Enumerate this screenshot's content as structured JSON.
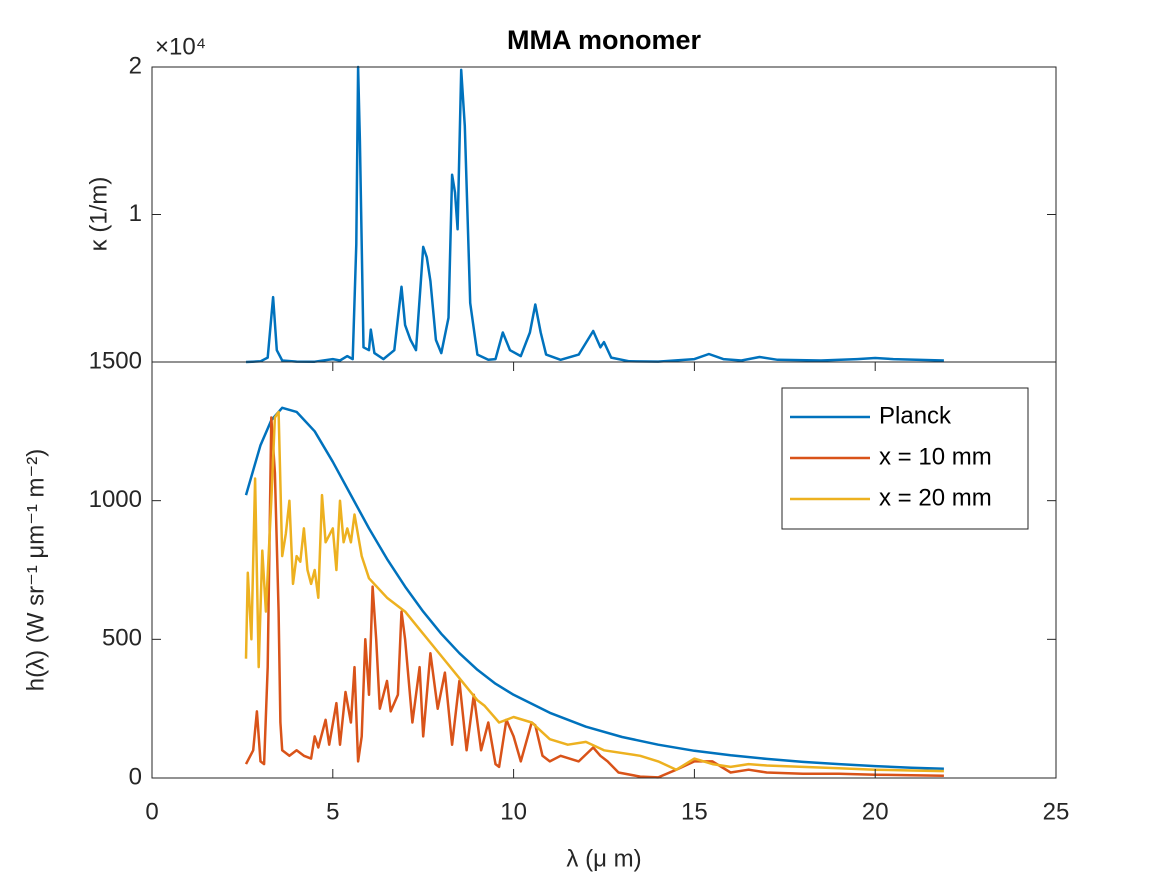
{
  "chart_data": [
    {
      "type": "line",
      "title": "MMA monomer",
      "ylabel": "κ (1/m)",
      "exponent_label": "×10⁴",
      "xlim": [
        0,
        25
      ],
      "ylim": [
        0,
        20000
      ],
      "yticks": [
        {
          "value": 10000,
          "label": "1"
        },
        {
          "value": 20000,
          "label": "2"
        }
      ],
      "series": [
        {
          "color": "#0072BD",
          "x": [
            2.6,
            3.0,
            3.2,
            3.35,
            3.45,
            3.6,
            4.0,
            4.5,
            5.0,
            5.2,
            5.4,
            5.55,
            5.65,
            5.7,
            5.75,
            5.85,
            6.0,
            6.05,
            6.15,
            6.4,
            6.7,
            6.9,
            7.0,
            7.15,
            7.3,
            7.45,
            7.5,
            7.6,
            7.7,
            7.85,
            8.0,
            8.2,
            8.3,
            8.38,
            8.45,
            8.55,
            8.65,
            8.8,
            9.0,
            9.3,
            9.5,
            9.7,
            9.9,
            10.2,
            10.45,
            10.6,
            10.75,
            10.9,
            11.3,
            11.8,
            12.2,
            12.4,
            12.5,
            12.7,
            13.2,
            14.0,
            15.0,
            15.4,
            15.8,
            16.3,
            16.8,
            17.3,
            18.5,
            19.5,
            20.0,
            20.5,
            21.9
          ],
          "values": [
            0,
            50,
            300,
            4400,
            800,
            100,
            30,
            20,
            200,
            100,
            400,
            200,
            8000,
            20000,
            15000,
            1000,
            800,
            2200,
            600,
            200,
            800,
            5100,
            2500,
            1500,
            800,
            6000,
            7800,
            7100,
            5500,
            1500,
            600,
            3000,
            12700,
            11500,
            9000,
            19800,
            16000,
            4000,
            500,
            150,
            200,
            2000,
            800,
            400,
            2000,
            3900,
            2000,
            500,
            150,
            500,
            2100,
            1000,
            1350,
            300,
            50,
            30,
            200,
            540,
            200,
            100,
            340,
            150,
            100,
            200,
            270,
            200,
            100
          ]
        }
      ]
    },
    {
      "type": "line",
      "xlabel": "λ (μ m)",
      "ylabel": "h(λ) (W sr⁻¹ μm⁻¹ m⁻²)",
      "xlim": [
        0,
        25
      ],
      "ylim": [
        0,
        1500
      ],
      "xticks": [
        0,
        5,
        10,
        15,
        20,
        25
      ],
      "yticks": [
        0,
        500,
        1000,
        1500
      ],
      "legend": "northeast",
      "series": [
        {
          "name": "Planck",
          "color": "#0072BD",
          "x": [
            2.6,
            3.0,
            3.3,
            3.6,
            4.0,
            4.5,
            5.0,
            5.5,
            6.0,
            6.5,
            7.0,
            7.5,
            8.0,
            8.5,
            9.0,
            9.5,
            10.0,
            11.0,
            12.0,
            13.0,
            14.0,
            15.0,
            16.0,
            17.0,
            18.0,
            19.0,
            20.0,
            21.0,
            21.9
          ],
          "values": [
            1020,
            1200,
            1290,
            1335,
            1320,
            1250,
            1140,
            1020,
            900,
            790,
            690,
            600,
            520,
            450,
            390,
            340,
            300,
            235,
            185,
            148,
            120,
            98,
            82,
            69,
            58,
            50,
            43,
            37,
            33
          ]
        },
        {
          "name": "x = 10 mm",
          "color": "#D95319",
          "x": [
            2.6,
            2.8,
            2.9,
            3.0,
            3.1,
            3.2,
            3.3,
            3.4,
            3.5,
            3.55,
            3.6,
            3.8,
            4.0,
            4.2,
            4.4,
            4.5,
            4.6,
            4.8,
            4.9,
            5.1,
            5.2,
            5.35,
            5.5,
            5.6,
            5.7,
            5.8,
            5.9,
            6.0,
            6.1,
            6.2,
            6.3,
            6.5,
            6.6,
            6.8,
            6.9,
            7.0,
            7.2,
            7.4,
            7.5,
            7.7,
            7.9,
            8.1,
            8.3,
            8.5,
            8.7,
            8.9,
            9.1,
            9.3,
            9.5,
            9.6,
            9.8,
            10.0,
            10.2,
            10.5,
            10.6,
            10.8,
            11.0,
            11.3,
            11.8,
            12.2,
            12.4,
            12.6,
            12.9,
            13.5,
            14.0,
            14.5,
            15.0,
            15.5,
            16.0,
            16.5,
            17.0,
            18.0,
            19.0,
            20.0,
            21.0,
            21.9
          ],
          "values": [
            50,
            100,
            240,
            60,
            50,
            400,
            1300,
            1100,
            600,
            200,
            100,
            80,
            100,
            80,
            70,
            150,
            110,
            210,
            120,
            270,
            120,
            310,
            200,
            400,
            60,
            150,
            500,
            300,
            690,
            500,
            250,
            350,
            240,
            300,
            600,
            500,
            200,
            400,
            150,
            450,
            250,
            380,
            120,
            350,
            100,
            300,
            100,
            200,
            50,
            40,
            210,
            150,
            60,
            200,
            190,
            80,
            60,
            80,
            60,
            110,
            80,
            60,
            20,
            5,
            2,
            30,
            60,
            60,
            20,
            30,
            20,
            15,
            15,
            12,
            10,
            8
          ]
        },
        {
          "name": "x = 20 mm",
          "color": "#EDB120",
          "x": [
            2.6,
            2.65,
            2.75,
            2.85,
            2.95,
            3.05,
            3.15,
            3.3,
            3.4,
            3.5,
            3.6,
            3.7,
            3.8,
            3.9,
            4.0,
            4.1,
            4.2,
            4.3,
            4.4,
            4.5,
            4.6,
            4.7,
            4.8,
            5.0,
            5.1,
            5.2,
            5.3,
            5.4,
            5.5,
            5.6,
            5.8,
            6.0,
            6.5,
            7.0,
            7.5,
            8.0,
            8.5,
            9.0,
            9.2,
            9.4,
            9.6,
            9.8,
            10.0,
            10.5,
            11.0,
            11.5,
            12.0,
            12.5,
            13.5,
            14.0,
            14.5,
            15.0,
            15.5,
            16.0,
            16.5,
            17.0,
            18.0,
            19.0,
            20.0,
            21.0,
            21.9
          ],
          "values": [
            430,
            740,
            500,
            1080,
            400,
            820,
            600,
            1000,
            1300,
            1320,
            800,
            880,
            1000,
            700,
            800,
            780,
            900,
            750,
            700,
            750,
            650,
            1020,
            850,
            900,
            750,
            1000,
            850,
            900,
            850,
            950,
            800,
            720,
            650,
            600,
            520,
            440,
            360,
            280,
            260,
            230,
            200,
            210,
            220,
            200,
            140,
            120,
            130,
            100,
            80,
            60,
            30,
            70,
            50,
            40,
            50,
            45,
            40,
            35,
            30,
            27,
            25
          ]
        }
      ]
    }
  ]
}
